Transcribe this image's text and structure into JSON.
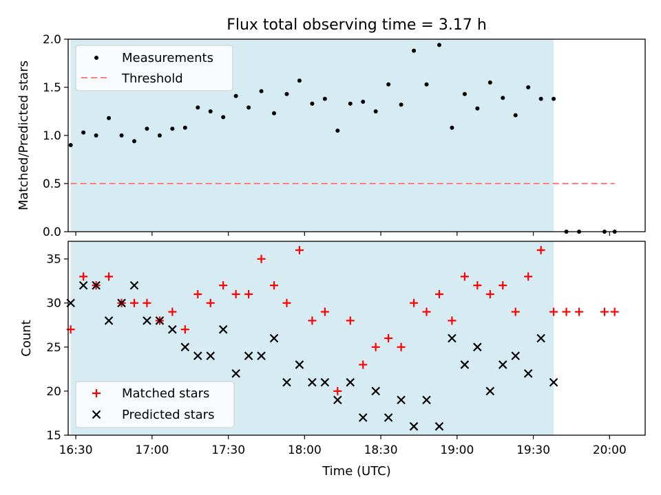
{
  "chart_data": [
    {
      "type": "scatter",
      "title": "Flux total observing time = 3.17 h",
      "xlabel": "",
      "ylabel": "Matched/Predicted stars",
      "xlim": [
        "16:27",
        "20:14"
      ],
      "ylim": [
        0,
        2.0
      ],
      "yticks": [
        "0.0",
        "0.5",
        "1.0",
        "1.5",
        "2.0"
      ],
      "shaded_interval": [
        "16:28",
        "19:38"
      ],
      "legend_position": "upper-left",
      "threshold": {
        "name": "Threshold",
        "value": 0.5,
        "x": [
          "16:28",
          "20:02"
        ],
        "color": "#ff7f7f"
      },
      "series": [
        {
          "name": "Measurements",
          "color": "#000000",
          "x": [
            "16:28",
            "16:33",
            "16:38",
            "16:43",
            "16:48",
            "16:53",
            "16:58",
            "17:03",
            "17:08",
            "17:13",
            "17:18",
            "17:23",
            "17:28",
            "17:33",
            "17:38",
            "17:43",
            "17:48",
            "17:53",
            "17:58",
            "18:03",
            "18:08",
            "18:13",
            "18:18",
            "18:23",
            "18:28",
            "18:33",
            "18:38",
            "18:43",
            "18:48",
            "18:53",
            "18:58",
            "19:03",
            "19:08",
            "19:13",
            "19:18",
            "19:23",
            "19:28",
            "19:33",
            "19:38",
            "19:43",
            "19:48",
            "19:58",
            "20:02"
          ],
          "values": [
            0.9,
            1.03,
            1.0,
            1.18,
            1.0,
            0.94,
            1.07,
            1.0,
            1.07,
            1.08,
            1.29,
            1.25,
            1.19,
            1.41,
            1.29,
            1.46,
            1.23,
            1.43,
            1.57,
            1.33,
            1.38,
            1.05,
            1.33,
            1.35,
            1.25,
            1.53,
            1.32,
            1.88,
            1.53,
            1.94,
            1.08,
            1.43,
            1.28,
            1.55,
            1.39,
            1.21,
            1.5,
            1.38,
            1.38,
            0.0,
            0.0,
            0.0,
            0.0
          ]
        }
      ]
    },
    {
      "type": "scatter",
      "xlabel": "Time (UTC)",
      "ylabel": "Count",
      "xlim": [
        "16:27",
        "20:14"
      ],
      "ylim": [
        15,
        37
      ],
      "xticks": [
        "16:30",
        "17:00",
        "17:30",
        "18:00",
        "18:30",
        "19:00",
        "19:30",
        "20:00"
      ],
      "yticks": [
        "15",
        "20",
        "25",
        "30",
        "35"
      ],
      "shaded_interval": [
        "16:28",
        "19:38"
      ],
      "legend_position": "lower-left",
      "series": [
        {
          "name": "Matched stars",
          "marker": "+",
          "color": "#ff0000",
          "x": [
            "16:28",
            "16:33",
            "16:38",
            "16:43",
            "16:48",
            "16:53",
            "16:58",
            "17:03",
            "17:08",
            "17:13",
            "17:18",
            "17:23",
            "17:28",
            "17:33",
            "17:38",
            "17:43",
            "17:48",
            "17:53",
            "17:58",
            "18:03",
            "18:08",
            "18:13",
            "18:18",
            "18:23",
            "18:28",
            "18:33",
            "18:38",
            "18:43",
            "18:48",
            "18:53",
            "18:58",
            "19:03",
            "19:08",
            "19:13",
            "19:18",
            "19:23",
            "19:28",
            "19:33",
            "19:38",
            "19:43",
            "19:48",
            "19:58",
            "20:02"
          ],
          "values": [
            27,
            33,
            32,
            33,
            30,
            30,
            30,
            28,
            29,
            27,
            31,
            30,
            32,
            31,
            31,
            35,
            32,
            30,
            36,
            28,
            29,
            20,
            28,
            23,
            25,
            26,
            25,
            30,
            29,
            31,
            28,
            33,
            32,
            31,
            32,
            29,
            33,
            36,
            29,
            29,
            29,
            29,
            29
          ]
        },
        {
          "name": "Predicted stars",
          "marker": "x",
          "color": "#000000",
          "x": [
            "16:28",
            "16:33",
            "16:38",
            "16:43",
            "16:48",
            "16:53",
            "16:58",
            "17:03",
            "17:08",
            "17:13",
            "17:18",
            "17:23",
            "17:28",
            "17:33",
            "17:38",
            "17:43",
            "17:48",
            "17:53",
            "17:58",
            "18:03",
            "18:08",
            "18:13",
            "18:18",
            "18:23",
            "18:28",
            "18:33",
            "18:38",
            "18:43",
            "18:48",
            "18:53",
            "18:58",
            "19:03",
            "19:08",
            "19:13",
            "19:18",
            "19:23",
            "19:28",
            "19:33",
            "19:38"
          ],
          "values": [
            30,
            32,
            32,
            28,
            30,
            32,
            28,
            28,
            27,
            25,
            24,
            24,
            27,
            22,
            24,
            24,
            26,
            21,
            23,
            21,
            21,
            19,
            21,
            17,
            20,
            17,
            19,
            16,
            19,
            16,
            26,
            23,
            25,
            20,
            23,
            24,
            22,
            26,
            21
          ]
        }
      ]
    }
  ],
  "colors": {
    "shade": "#add8e6",
    "shade_opacity": 0.5
  }
}
